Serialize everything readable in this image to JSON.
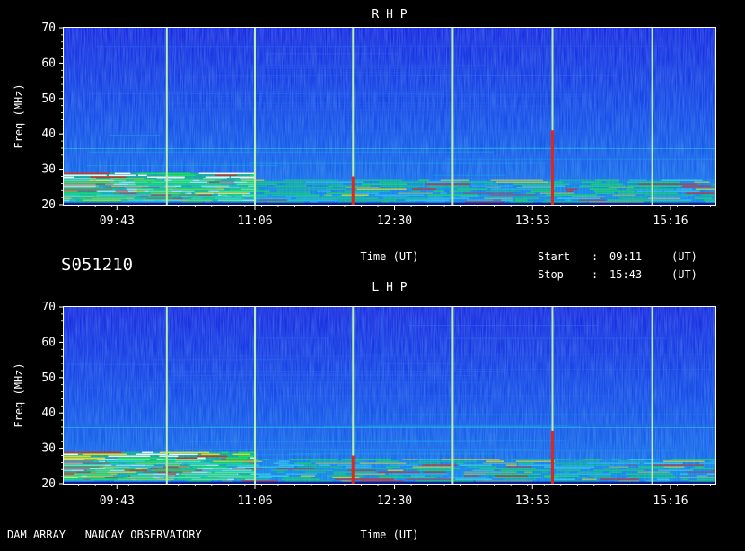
{
  "observation_id": "S051210",
  "footer": {
    "observatory": "DAM ARRAY   NANCAY OBSERVATORY"
  },
  "time_range": {
    "start_label": "Start",
    "stop_label": "Stop",
    "separator": ":",
    "start_value": "09:11",
    "stop_value": "15:43",
    "unit": "(UT)"
  },
  "colors": {
    "background": "#000000",
    "low": "#1030d8",
    "mid": "#18a8e8",
    "high": "#18e850",
    "peak": "#e02818",
    "max": "#ffffff",
    "axis": "#ffffff",
    "time_marker": "#b8f0a8"
  },
  "chart_data": [
    {
      "type": "heatmap",
      "title": "R H P",
      "xlabel": "Time (UT)",
      "ylabel": "Freq (MHz)",
      "x_range": [
        "09:11",
        "15:43"
      ],
      "xlim_minutes": [
        551,
        943
      ],
      "ylim": [
        20,
        70
      ],
      "x_ticks": [
        "09:43",
        "11:06",
        "12:30",
        "13:53",
        "15:16"
      ],
      "y_ticks": [
        20,
        30,
        40,
        50,
        60,
        70
      ],
      "time_markers": [
        "10:13",
        "11:06",
        "12:05",
        "13:05",
        "14:05",
        "15:05"
      ],
      "features": [
        {
          "kind": "intense band",
          "from": "09:11",
          "to": "11:06",
          "freq_low": 21,
          "freq_high": 29,
          "level": "max"
        },
        {
          "kind": "emission band",
          "from": "09:11",
          "to": "15:43",
          "freq_low": 20,
          "freq_high": 27,
          "level": "high"
        },
        {
          "kind": "spike",
          "at": "12:05",
          "freq_low": 20,
          "freq_high": 28,
          "level": "peak"
        },
        {
          "kind": "spike",
          "at": "14:05",
          "freq_low": 20,
          "freq_high": 41,
          "level": "peak"
        }
      ]
    },
    {
      "type": "heatmap",
      "title": "L H P",
      "xlabel": "Time (UT)",
      "ylabel": "Freq (MHz)",
      "x_range": [
        "09:11",
        "15:43"
      ],
      "xlim_minutes": [
        551,
        943
      ],
      "ylim": [
        20,
        70
      ],
      "x_ticks": [
        "09:43",
        "11:06",
        "12:30",
        "13:53",
        "15:16"
      ],
      "y_ticks": [
        20,
        30,
        40,
        50,
        60,
        70
      ],
      "time_markers": [
        "10:13",
        "11:06",
        "12:05",
        "13:05",
        "14:05",
        "15:05"
      ],
      "features": [
        {
          "kind": "intense band",
          "from": "09:11",
          "to": "11:06",
          "freq_low": 21,
          "freq_high": 29,
          "level": "max"
        },
        {
          "kind": "emission band",
          "from": "09:11",
          "to": "15:43",
          "freq_low": 20,
          "freq_high": 27,
          "level": "high"
        },
        {
          "kind": "spike",
          "at": "12:05",
          "freq_low": 20,
          "freq_high": 28,
          "level": "peak"
        },
        {
          "kind": "spike",
          "at": "14:05",
          "freq_low": 20,
          "freq_high": 35,
          "level": "peak"
        }
      ]
    }
  ]
}
